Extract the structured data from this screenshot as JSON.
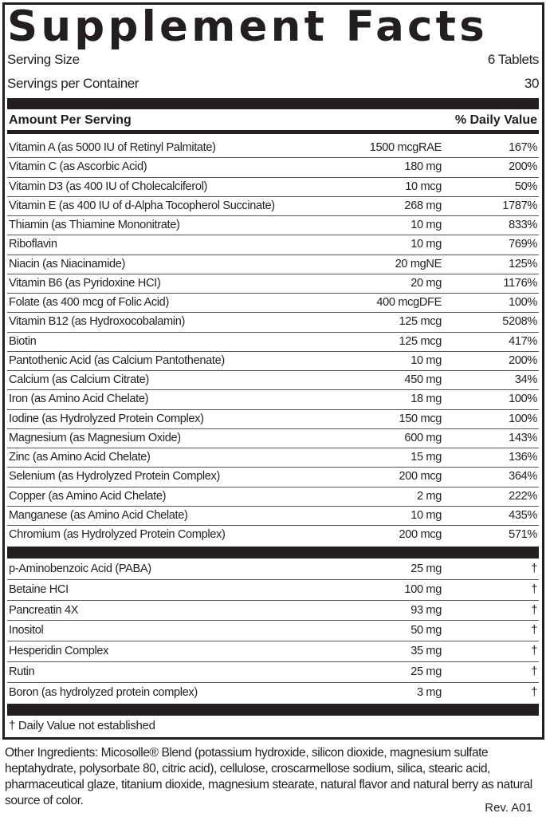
{
  "title": "Supplement Facts",
  "serving": {
    "size_label": "Serving Size",
    "size_value": "6 Tablets",
    "per_container_label": "Servings per Container",
    "per_container_value": "30"
  },
  "header": {
    "amount": "Amount Per Serving",
    "dv": "% Daily Value"
  },
  "nutrients": [
    {
      "name": "Vitamin A (as 5000 IU of Retinyl Palmitate)",
      "amount": "1500 mcgRAE",
      "dv": "167%"
    },
    {
      "name": "Vitamin C (as Ascorbic Acid)",
      "amount": "180 mg",
      "dv": "200%"
    },
    {
      "name": "Vitamin D3 (as 400 IU of Cholecalciferol)",
      "amount": "10 mcg",
      "dv": "50%"
    },
    {
      "name": "Vitamin E (as 400 IU of d-Alpha Tocopherol Succinate)",
      "amount": "268 mg",
      "dv": "1787%"
    },
    {
      "name": "Thiamin (as Thiamine Mononitrate)",
      "amount": "10 mg",
      "dv": "833%"
    },
    {
      "name": "Riboflavin",
      "amount": "10 mg",
      "dv": "769%"
    },
    {
      "name": "Niacin (as Niacinamide)",
      "amount": "20 mgNE",
      "dv": "125%"
    },
    {
      "name": "Vitamin B6 (as Pyridoxine HCI)",
      "amount": "20 mg",
      "dv": "1176%"
    },
    {
      "name": "Folate (as 400 mcg of Folic Acid)",
      "amount": "400 mcgDFE",
      "dv": "100%"
    },
    {
      "name": "Vitamin B12 (as Hydroxocobalamin)",
      "amount": "125 mcg",
      "dv": "5208%"
    },
    {
      "name": "Biotin",
      "amount": "125 mcg",
      "dv": "417%"
    },
    {
      "name": "Pantothenic Acid (as Calcium Pantothenate)",
      "amount": "10 mg",
      "dv": "200%"
    },
    {
      "name": "Calcium (as Calcium Citrate)",
      "amount": "450 mg",
      "dv": "34%"
    },
    {
      "name": "Iron (as Amino Acid Chelate)",
      "amount": "18 mg",
      "dv": "100%"
    },
    {
      "name": "Iodine (as Hydrolyzed Protein Complex)",
      "amount": "150 mcg",
      "dv": "100%"
    },
    {
      "name": "Magnesium (as Magnesium Oxide)",
      "amount": "600 mg",
      "dv": "143%"
    },
    {
      "name": "Zinc (as Amino Acid Chelate)",
      "amount": "15 mg",
      "dv": "136%"
    },
    {
      "name": "Selenium (as Hydrolyzed Protein Complex)",
      "amount": "200 mcg",
      "dv": "364%"
    },
    {
      "name": "Copper (as Amino Acid Chelate)",
      "amount": "2 mg",
      "dv": "222%"
    },
    {
      "name": "Manganese (as Amino Acid Chelate)",
      "amount": "10 mg",
      "dv": "435%"
    },
    {
      "name": "Chromium (as Hydrolyzed Protein Complex)",
      "amount": "200 mcg",
      "dv": "571%"
    }
  ],
  "other_nutrients": [
    {
      "name": "p-Aminobenzoic Acid (PABA)",
      "amount": "25 mg",
      "dv": "†"
    },
    {
      "name": "Betaine HCI",
      "amount": "100 mg",
      "dv": "†"
    },
    {
      "name": "Pancreatin 4X",
      "amount": "93 mg",
      "dv": "†"
    },
    {
      "name": "Inositol",
      "amount": "50 mg",
      "dv": "†"
    },
    {
      "name": "Hesperidin Complex",
      "amount": "35 mg",
      "dv": "†"
    },
    {
      "name": "Rutin",
      "amount": "25 mg",
      "dv": "†"
    },
    {
      "name": "Boron (as hydrolyzed protein complex)",
      "amount": "3 mg",
      "dv": "†"
    }
  ],
  "footnote": "† Daily Value not established",
  "other_ingredients": "Other Ingredients: Micosolle® Blend (potassium hydroxide, silicon dioxide, magnesium sulfate heptahydrate, polysorbate 80, citric acid), cellulose, croscarmellose sodium, silica, stearic acid, pharmaceutical glaze, titanium dioxide, magnesium stearate, natural flavor and natural berry as natural source of color.",
  "revision": "Rev. A01"
}
